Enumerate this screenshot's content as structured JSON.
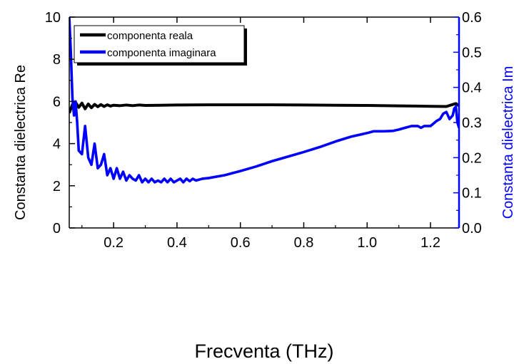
{
  "chart_data": {
    "type": "line",
    "title": "",
    "xlabel": "Frecventa (THz)",
    "ylabel_left": "Constanta dielectrica Re",
    "ylabel_right": "Constanta dielectrica Im",
    "xlim": [
      0.06,
      1.29
    ],
    "ylim_left": [
      0,
      10
    ],
    "ylim_right": [
      0.0,
      0.6
    ],
    "x_ticks": [
      "0.2",
      "0.4",
      "0.6",
      "0.8",
      "1.0",
      "1.2"
    ],
    "y_left_ticks": [
      "0",
      "2",
      "4",
      "6",
      "8",
      "10"
    ],
    "y_right_ticks": [
      "0.0",
      "0.1",
      "0.2",
      "0.3",
      "0.4",
      "0.5",
      "0.6"
    ],
    "grid": false,
    "legend": "top-left",
    "right_axis_color": "#0000ff",
    "series": [
      {
        "name": "componenta reala",
        "axis": "left",
        "color": "#000000",
        "x": [
          0.06,
          0.07,
          0.08,
          0.09,
          0.1,
          0.11,
          0.12,
          0.13,
          0.14,
          0.15,
          0.16,
          0.17,
          0.18,
          0.19,
          0.2,
          0.22,
          0.24,
          0.26,
          0.28,
          0.3,
          0.35,
          0.4,
          0.5,
          0.6,
          0.7,
          0.8,
          0.9,
          1.0,
          1.1,
          1.15,
          1.2,
          1.25,
          1.28,
          1.29
        ],
        "y": [
          5.45,
          5.85,
          5.95,
          5.72,
          5.92,
          5.65,
          5.88,
          5.7,
          5.86,
          5.75,
          5.85,
          5.76,
          5.84,
          5.78,
          5.82,
          5.8,
          5.83,
          5.8,
          5.83,
          5.81,
          5.82,
          5.83,
          5.84,
          5.84,
          5.84,
          5.83,
          5.82,
          5.81,
          5.79,
          5.78,
          5.77,
          5.76,
          5.9,
          5.8
        ]
      },
      {
        "name": "componenta imaginara",
        "axis": "right",
        "color": "#0000ff",
        "x": [
          0.06,
          0.065,
          0.07,
          0.075,
          0.08,
          0.085,
          0.09,
          0.1,
          0.11,
          0.12,
          0.13,
          0.14,
          0.15,
          0.16,
          0.17,
          0.18,
          0.19,
          0.2,
          0.21,
          0.22,
          0.23,
          0.24,
          0.25,
          0.26,
          0.27,
          0.28,
          0.29,
          0.3,
          0.31,
          0.32,
          0.33,
          0.34,
          0.35,
          0.36,
          0.37,
          0.38,
          0.39,
          0.4,
          0.41,
          0.42,
          0.43,
          0.44,
          0.45,
          0.46,
          0.48,
          0.5,
          0.55,
          0.6,
          0.65,
          0.7,
          0.75,
          0.8,
          0.85,
          0.9,
          0.95,
          1.0,
          1.02,
          1.05,
          1.08,
          1.1,
          1.12,
          1.14,
          1.15,
          1.16,
          1.17,
          1.18,
          1.2,
          1.22,
          1.23,
          1.24,
          1.25,
          1.26,
          1.27,
          1.275,
          1.28,
          1.285,
          1.29
        ],
        "y": [
          0.6,
          0.5,
          0.37,
          0.32,
          0.36,
          0.3,
          0.22,
          0.21,
          0.29,
          0.2,
          0.18,
          0.24,
          0.17,
          0.18,
          0.21,
          0.15,
          0.17,
          0.14,
          0.17,
          0.14,
          0.16,
          0.135,
          0.15,
          0.14,
          0.135,
          0.15,
          0.13,
          0.14,
          0.13,
          0.14,
          0.13,
          0.135,
          0.13,
          0.14,
          0.13,
          0.14,
          0.13,
          0.135,
          0.14,
          0.13,
          0.14,
          0.133,
          0.14,
          0.135,
          0.14,
          0.142,
          0.15,
          0.162,
          0.175,
          0.19,
          0.203,
          0.216,
          0.23,
          0.246,
          0.26,
          0.27,
          0.275,
          0.275,
          0.276,
          0.28,
          0.285,
          0.29,
          0.29,
          0.29,
          0.285,
          0.29,
          0.29,
          0.305,
          0.31,
          0.325,
          0.33,
          0.31,
          0.32,
          0.34,
          0.345,
          0.3,
          0.285
        ]
      }
    ]
  }
}
